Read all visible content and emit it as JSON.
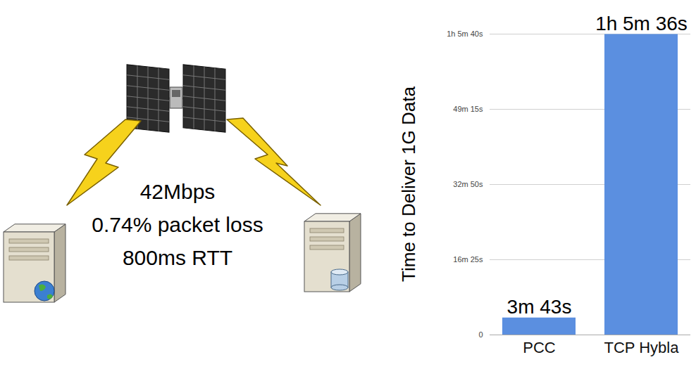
{
  "chart_data": {
    "type": "bar",
    "y_label": "Time to Deliver 1G Data",
    "categories": [
      "PCC",
      "TCP Hybla"
    ],
    "values": [
      223,
      3936
    ],
    "value_labels": [
      "3m 43s",
      "1h 5m 36s"
    ],
    "data_labels": true,
    "color": "#5b8fe0",
    "ylim": [
      0,
      3940
    ],
    "yticks": [
      0,
      {
        "value": 985,
        "label": "16m 25s"
      },
      {
        "value": 1970,
        "label": "32m 50s"
      },
      {
        "value": 2955,
        "label": "49m 15s"
      },
      {
        "value": 3940,
        "label": "1h 5m 40s"
      }
    ],
    "grid": true
  },
  "diagram": {
    "link_label": [
      "42Mbps",
      "0.74% packet loss",
      "800ms RTT"
    ]
  }
}
